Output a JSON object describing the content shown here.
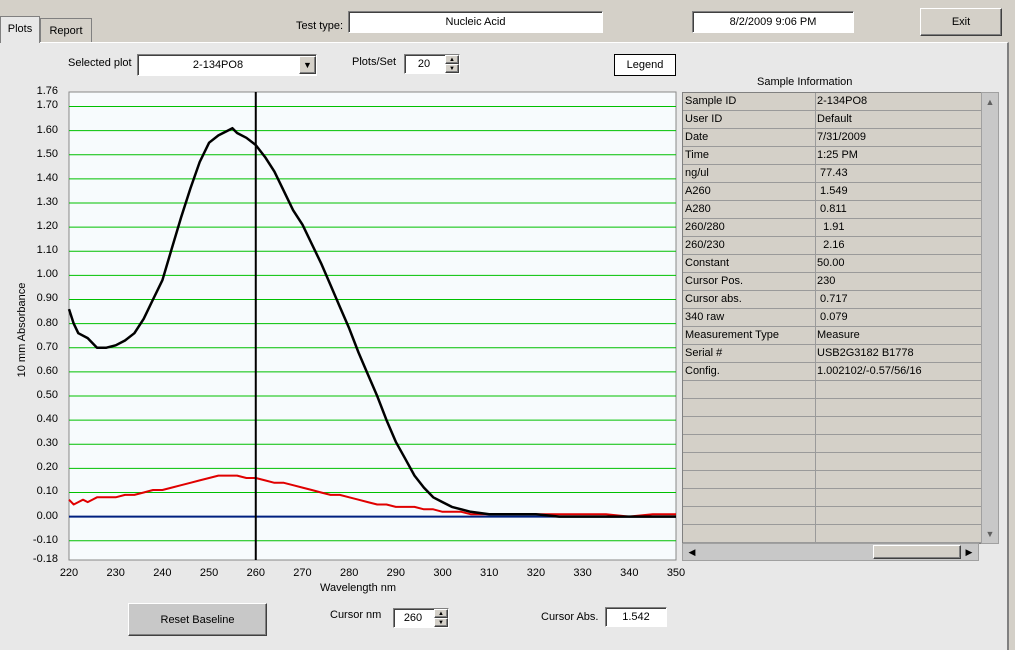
{
  "tabs": [
    {
      "label": "Plots"
    },
    {
      "label": "Report"
    }
  ],
  "header": {
    "test_type_label": "Test type:",
    "test_type_value": "Nucleic Acid",
    "datetime": "8/2/2009  9:06 PM",
    "exit_label": "Exit"
  },
  "controls": {
    "selected_plot_label": "Selected plot",
    "selected_plot_value": "2-134PO8",
    "plots_per_set_label": "Plots/Set",
    "plots_per_set_value": "20",
    "legend_label": "Legend"
  },
  "sample_info": {
    "title": "Sample Information",
    "rows": [
      {
        "key": "Sample ID",
        "value": "2-134PO8"
      },
      {
        "key": "User ID",
        "value": "Default"
      },
      {
        "key": "Date",
        "value": "7/31/2009"
      },
      {
        "key": "Time",
        "value": "1:25 PM"
      },
      {
        "key": "ng/ul",
        "value": " 77.43"
      },
      {
        "key": "A260",
        "value": " 1.549"
      },
      {
        "key": "A280",
        "value": " 0.811"
      },
      {
        "key": "260/280",
        "value": "  1.91"
      },
      {
        "key": "260/230",
        "value": "  2.16"
      },
      {
        "key": "Constant",
        "value": "50.00"
      },
      {
        "key": "Cursor Pos.",
        "value": "230"
      },
      {
        "key": "Cursor abs.",
        "value": " 0.717"
      },
      {
        "key": "340 raw",
        "value": " 0.079"
      },
      {
        "key": "Measurement Type",
        "value": "Measure"
      },
      {
        "key": "Serial #",
        "value": "USB2G3182 B1778"
      },
      {
        "key": "Config.",
        "value": "1.002102/-0.57/56/16"
      }
    ]
  },
  "bottom": {
    "reset_baseline_label": "Reset Baseline",
    "cursor_nm_label": "Cursor nm",
    "cursor_nm_value": "260",
    "cursor_abs_label": "Cursor Abs.",
    "cursor_abs_value": "1.542"
  },
  "colors": {
    "grid": "#00c000",
    "sample_curve": "#000000",
    "red_curve": "#e00000",
    "baseline": "#002080",
    "plot_bg": "#f7fbfd"
  },
  "chart_data": {
    "type": "line",
    "xlabel": "Wavelength nm",
    "ylabel": "10 mm Absorbance",
    "xlim": [
      220,
      350
    ],
    "ylim": [
      -0.18,
      1.76
    ],
    "x_ticks": [
      "220",
      "230",
      "240",
      "250",
      "260",
      "270",
      "280",
      "290",
      "300",
      "310",
      "320",
      "330",
      "340",
      "350"
    ],
    "y_ticks": [
      "1.76",
      "1.70",
      "1.60",
      "1.50",
      "1.40",
      "1.30",
      "1.20",
      "1.10",
      "1.00",
      "0.90",
      "0.80",
      "0.70",
      "0.60",
      "0.50",
      "0.40",
      "0.30",
      "0.20",
      "0.10",
      "0.00",
      "-0.10",
      "-0.18"
    ],
    "cursor_x": 260,
    "series": [
      {
        "color": "#000000",
        "x": [
          220,
          221,
          222,
          224,
          226,
          227,
          228,
          230,
          232,
          234,
          236,
          238,
          240,
          242,
          244,
          246,
          248,
          250,
          252,
          254,
          255,
          256,
          258,
          260,
          262,
          264,
          266,
          268,
          270,
          272,
          274,
          276,
          278,
          280,
          282,
          284,
          286,
          288,
          290,
          292,
          294,
          296,
          298,
          300,
          302,
          304,
          306,
          308,
          310,
          315,
          320,
          325,
          330,
          335,
          340,
          345,
          350
        ],
        "y": [
          0.86,
          0.8,
          0.76,
          0.74,
          0.7,
          0.7,
          0.7,
          0.71,
          0.73,
          0.76,
          0.82,
          0.9,
          0.98,
          1.11,
          1.24,
          1.36,
          1.47,
          1.55,
          1.58,
          1.6,
          1.61,
          1.59,
          1.57,
          1.54,
          1.49,
          1.43,
          1.35,
          1.27,
          1.21,
          1.13,
          1.05,
          0.96,
          0.87,
          0.78,
          0.68,
          0.59,
          0.5,
          0.4,
          0.31,
          0.24,
          0.17,
          0.12,
          0.08,
          0.06,
          0.04,
          0.03,
          0.02,
          0.015,
          0.01,
          0.01,
          0.01,
          0.0,
          0.0,
          0.0,
          0.0,
          0.0,
          0.0
        ]
      },
      {
        "color": "#e00000",
        "x": [
          220,
          221,
          222,
          223,
          224,
          225,
          226,
          228,
          230,
          232,
          234,
          236,
          238,
          240,
          242,
          244,
          246,
          248,
          250,
          252,
          254,
          256,
          258,
          260,
          262,
          264,
          266,
          268,
          270,
          272,
          274,
          276,
          278,
          280,
          282,
          284,
          286,
          288,
          290,
          292,
          294,
          296,
          298,
          300,
          302,
          304,
          306,
          308,
          310,
          315,
          320,
          325,
          330,
          335,
          340,
          345,
          350
        ],
        "y": [
          0.07,
          0.05,
          0.06,
          0.07,
          0.06,
          0.07,
          0.08,
          0.08,
          0.08,
          0.09,
          0.09,
          0.1,
          0.11,
          0.11,
          0.12,
          0.13,
          0.14,
          0.15,
          0.16,
          0.17,
          0.17,
          0.17,
          0.16,
          0.16,
          0.15,
          0.14,
          0.14,
          0.13,
          0.12,
          0.11,
          0.1,
          0.09,
          0.09,
          0.08,
          0.07,
          0.06,
          0.05,
          0.05,
          0.04,
          0.04,
          0.04,
          0.03,
          0.03,
          0.02,
          0.02,
          0.02,
          0.01,
          0.01,
          0.01,
          0.01,
          0.01,
          0.01,
          0.01,
          0.01,
          0.0,
          0.01,
          0.01
        ]
      },
      {
        "color": "#002080",
        "x": [
          220,
          230,
          240,
          250,
          260,
          270,
          280,
          290,
          300,
          310,
          320,
          330,
          340,
          350
        ],
        "y": [
          0,
          0,
          0,
          0,
          0,
          0,
          0,
          0,
          0,
          0,
          0,
          0,
          0,
          0
        ]
      }
    ]
  }
}
